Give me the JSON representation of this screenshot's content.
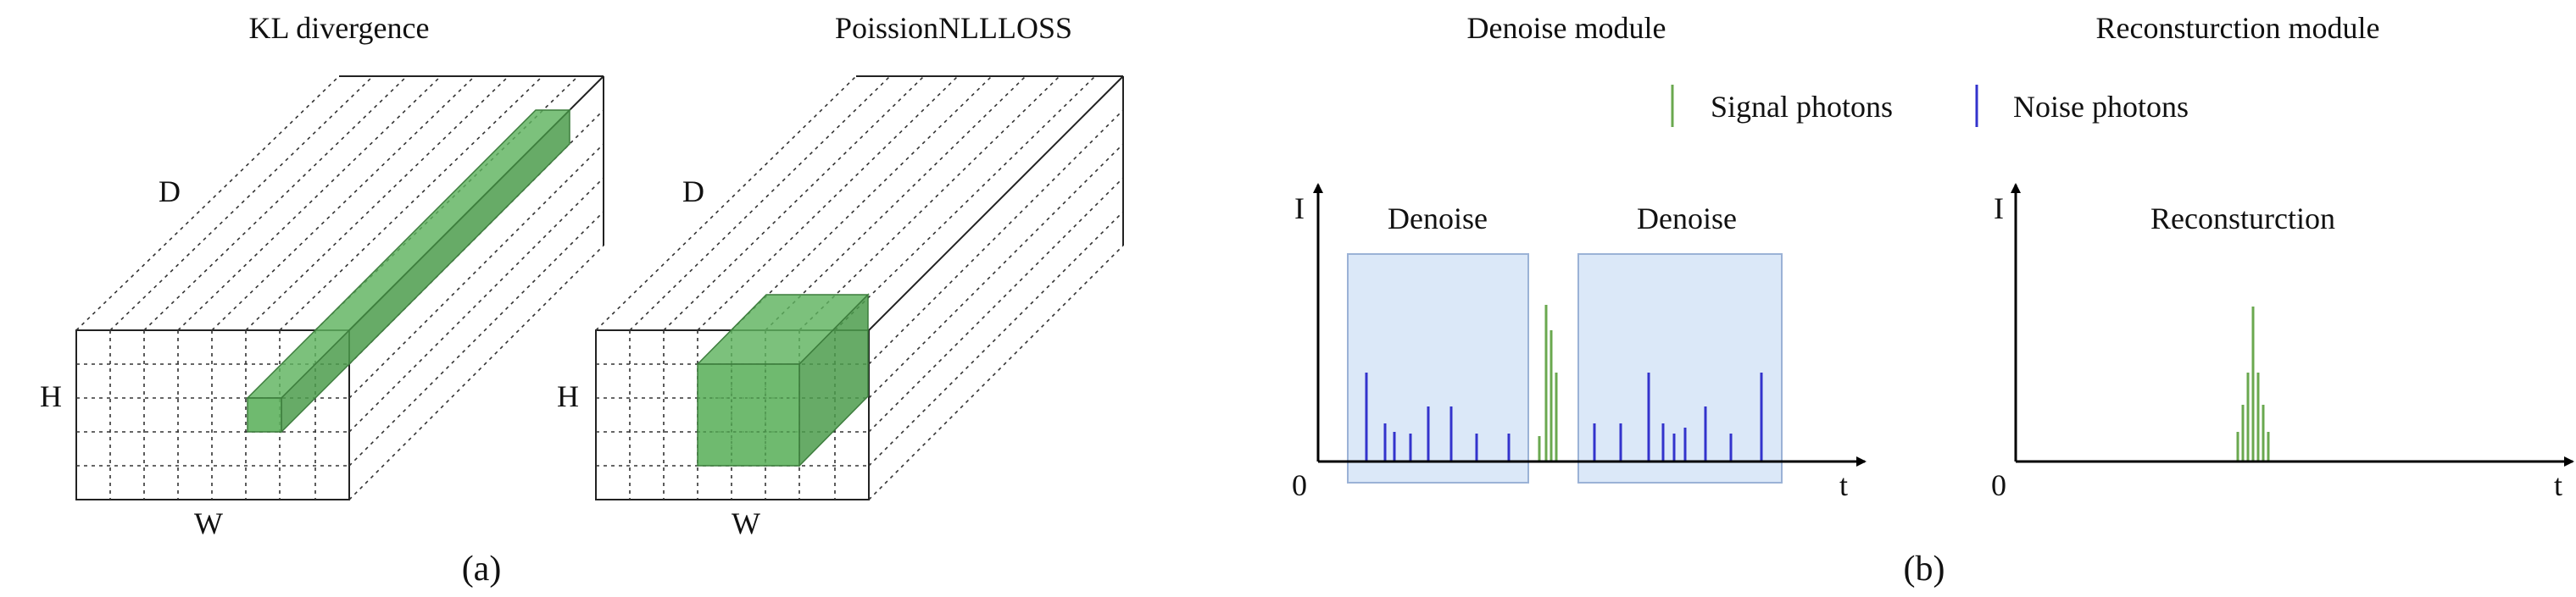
{
  "panel_a": {
    "left": {
      "title": "KL divergence",
      "label_d": "D",
      "label_h": "H",
      "label_w": "W"
    },
    "right": {
      "title": "PoissionNLLLOSS",
      "label_d": "D",
      "label_h": "H",
      "label_w": "W"
    },
    "caption": "(a)"
  },
  "panel_b": {
    "titles": {
      "denoise": "Denoise module",
      "reconstruction": "Reconsturction module"
    },
    "legend": {
      "signal": "Signal photons",
      "noise": "Noise photons"
    },
    "denoise_plot": {
      "y_label": "I",
      "x_label": "t",
      "origin": "0",
      "box1": "Denoise",
      "box2": "Denoise"
    },
    "recon_plot": {
      "y_label": "I",
      "x_label": "t",
      "origin": "0",
      "box": "Reconsturction"
    },
    "caption": "(b)"
  },
  "colors": {
    "signal": "#6aa84f",
    "noise": "#3333cc",
    "highlight_fill": "#5fb35f",
    "window_fill": "#dbe8f8",
    "window_stroke": "#9bb2d6",
    "grid": "#333333"
  },
  "icons": [
    "signal-line-icon",
    "noise-line-icon",
    "arrow-head-icon"
  ]
}
